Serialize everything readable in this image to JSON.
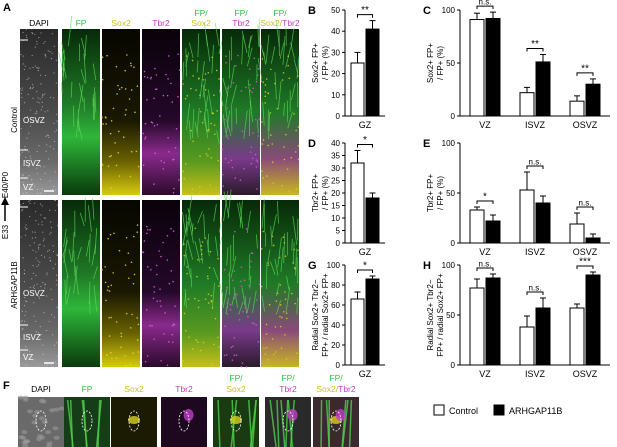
{
  "colors": {
    "fp": "#2fbf3a",
    "sox2": "#c8c020",
    "tbr2": "#c23cc2",
    "white": "#ffffff",
    "black": "#000000"
  },
  "panel_a": {
    "letter": "A",
    "headers": [
      {
        "parts": [
          {
            "t": "DAPI",
            "c": "#ffffff"
          }
        ]
      },
      {
        "parts": [
          {
            "t": "FP",
            "c": "#2fbf3a"
          }
        ]
      },
      {
        "parts": [
          {
            "t": "Sox2",
            "c": "#c8c020"
          }
        ]
      },
      {
        "parts": [
          {
            "t": "Tbr2",
            "c": "#c23cc2"
          }
        ]
      },
      {
        "parts": [
          {
            "t": "FP/",
            "c": "#2fbf3a"
          }
        ],
        "line2": [
          {
            "t": "Sox2",
            "c": "#c8c020"
          }
        ]
      },
      {
        "parts": [
          {
            "t": "FP/",
            "c": "#2fbf3a"
          }
        ],
        "line2": [
          {
            "t": "Tbr2",
            "c": "#c23cc2"
          }
        ]
      },
      {
        "parts": [
          {
            "t": "FP/",
            "c": "#2fbf3a"
          }
        ],
        "line2": [
          {
            "t": "Sox2/",
            "c": "#c8c020"
          },
          {
            "t": "Tbr2",
            "c": "#c23cc2"
          }
        ]
      }
    ],
    "row_labels": {
      "control": "Control",
      "arhgap": "ARHGAP11B",
      "timeline_start": "E33",
      "timeline_end": "E40/P0"
    },
    "zone_labels": {
      "osvz": "OSVZ",
      "isvz": "ISVZ",
      "vz": "VZ"
    }
  },
  "panel_f": {
    "letter": "F",
    "headers": [
      {
        "parts": [
          {
            "t": "DAPI",
            "c": "#000000"
          }
        ]
      },
      {
        "parts": [
          {
            "t": "FP",
            "c": "#2fbf3a"
          }
        ]
      },
      {
        "parts": [
          {
            "t": "Sox2",
            "c": "#c8c020"
          }
        ]
      },
      {
        "parts": [
          {
            "t": "Tbr2",
            "c": "#c23cc2"
          }
        ]
      },
      {
        "parts": [
          {
            "t": "FP/",
            "c": "#2fbf3a"
          }
        ],
        "line2": [
          {
            "t": "Sox2",
            "c": "#c8c020"
          }
        ]
      },
      {
        "parts": [
          {
            "t": "FP/",
            "c": "#2fbf3a"
          }
        ],
        "line2": [
          {
            "t": "Tbr2",
            "c": "#c23cc2"
          }
        ]
      },
      {
        "parts": [
          {
            "t": "FP/",
            "c": "#2fbf3a"
          }
        ],
        "line2": [
          {
            "t": "Sox2/",
            "c": "#c8c020"
          },
          {
            "t": "Tbr2",
            "c": "#c23cc2"
          }
        ]
      }
    ]
  },
  "legend": {
    "control": "Control",
    "arhgap": "ARHGAP11B"
  },
  "chart_data": [
    {
      "id": "B",
      "type": "bar",
      "ylabel": [
        "Sox2+ FP+",
        "/ FP+ (%)"
      ],
      "ylim": [
        0,
        50
      ],
      "yticks": [
        0,
        10,
        20,
        30,
        40,
        50
      ],
      "categories": [
        "GZ"
      ],
      "series": [
        {
          "name": "Control",
          "values": [
            25
          ],
          "err": [
            5
          ]
        },
        {
          "name": "ARHGAP11B",
          "values": [
            41
          ],
          "err": [
            4
          ]
        }
      ],
      "sig": [
        {
          "cat": 0,
          "label": "**"
        }
      ]
    },
    {
      "id": "C",
      "type": "bar",
      "ylabel": [
        "Sox2+ FP+",
        "/ FP+ (%)"
      ],
      "ylim": [
        0,
        100
      ],
      "yticks": [
        0,
        50,
        100
      ],
      "categories": [
        "VZ",
        "ISVZ",
        "OSVZ"
      ],
      "series": [
        {
          "name": "Control",
          "values": [
            91,
            22,
            14
          ],
          "err": [
            6,
            5,
            5
          ]
        },
        {
          "name": "ARHGAP11B",
          "values": [
            92,
            51,
            30
          ],
          "err": [
            6,
            7,
            5
          ]
        }
      ],
      "sig": [
        {
          "cat": 0,
          "label": "n.s."
        },
        {
          "cat": 1,
          "label": "**"
        },
        {
          "cat": 2,
          "label": "**"
        }
      ]
    },
    {
      "id": "D",
      "type": "bar",
      "ylabel": [
        "Tbr2+ FP+",
        "/ FP+ (%)"
      ],
      "ylim": [
        0,
        40
      ],
      "yticks": [
        0,
        5,
        10,
        15,
        20,
        25,
        30,
        35,
        40
      ],
      "categories": [
        "GZ"
      ],
      "series": [
        {
          "name": "Control",
          "values": [
            32
          ],
          "err": [
            5
          ]
        },
        {
          "name": "ARHGAP11B",
          "values": [
            18
          ],
          "err": [
            2
          ]
        }
      ],
      "sig": [
        {
          "cat": 0,
          "label": "*"
        }
      ]
    },
    {
      "id": "E",
      "type": "bar",
      "ylabel": [
        "Tbr2+ FP+",
        "/ FP+ (%)"
      ],
      "ylim": [
        0,
        100
      ],
      "yticks": [
        0,
        50,
        100
      ],
      "categories": [
        "VZ",
        "ISVZ",
        "OSVZ"
      ],
      "series": [
        {
          "name": "Control",
          "values": [
            33,
            53,
            19
          ],
          "err": [
            3,
            18,
            11
          ]
        },
        {
          "name": "ARHGAP11B",
          "values": [
            22,
            40,
            5
          ],
          "err": [
            6,
            7,
            4
          ]
        }
      ],
      "sig": [
        {
          "cat": 0,
          "label": "*"
        },
        {
          "cat": 1,
          "label": "n.s."
        },
        {
          "cat": 2,
          "label": "n.s."
        }
      ]
    },
    {
      "id": "G",
      "type": "bar",
      "ylabel": [
        "Radial Sox2+ Tbr2−",
        "FP+ / radial Sox2+ FP+"
      ],
      "ylim": [
        0,
        100
      ],
      "yticks": [
        0,
        20,
        40,
        60,
        80,
        100
      ],
      "categories": [
        "GZ"
      ],
      "series": [
        {
          "name": "Control",
          "values": [
            66
          ],
          "err": [
            7
          ]
        },
        {
          "name": "ARHGAP11B",
          "values": [
            86
          ],
          "err": [
            3
          ]
        }
      ],
      "sig": [
        {
          "cat": 0,
          "label": "*"
        }
      ]
    },
    {
      "id": "H",
      "type": "bar",
      "ylabel": [
        "Radial Sox2+ Tbr2−",
        "FP+ / radial Sox2+ FP+"
      ],
      "ylim": [
        0,
        100
      ],
      "yticks": [
        0,
        50,
        100
      ],
      "categories": [
        "VZ",
        "ISVZ",
        "OSVZ"
      ],
      "series": [
        {
          "name": "Control",
          "values": [
            77,
            38,
            57
          ],
          "err": [
            9,
            11,
            4
          ]
        },
        {
          "name": "ARHGAP11B",
          "values": [
            87,
            57,
            90
          ],
          "err": [
            4,
            10,
            3
          ]
        }
      ],
      "sig": [
        {
          "cat": 0,
          "label": "n.s."
        },
        {
          "cat": 1,
          "label": "n.s."
        },
        {
          "cat": 2,
          "label": "***"
        }
      ]
    }
  ]
}
